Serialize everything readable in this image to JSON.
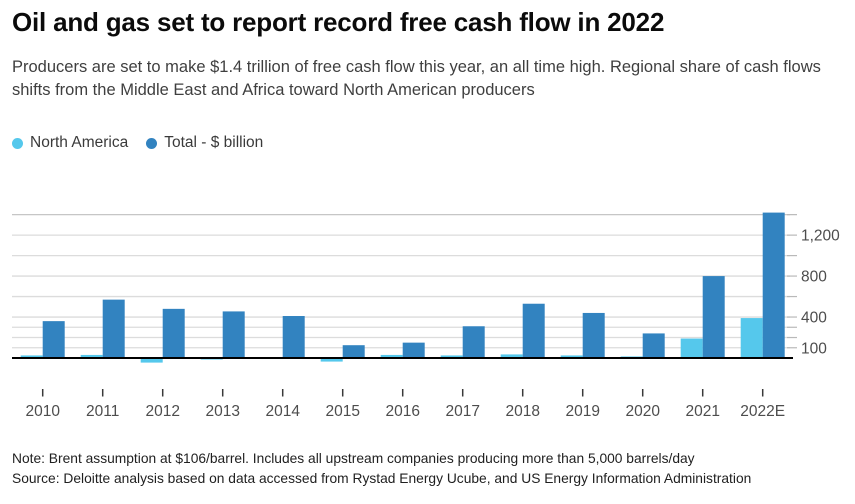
{
  "chart_data": {
    "type": "bar",
    "title": "Oil and gas set to report record free cash flow in 2022",
    "subtitle": "Producers are set to make $1.4 trillion of free cash flow this year, an all time high. Regional share of cash flows shifts from the Middle East and Africa toward North American producers",
    "categories": [
      "2010",
      "2011",
      "2012",
      "2013",
      "2014",
      "2015",
      "2016",
      "2017",
      "2018",
      "2019",
      "2020",
      "2021",
      "2022E"
    ],
    "series": [
      {
        "name": "North America",
        "color": "#55C8EC",
        "values": [
          25,
          30,
          -45,
          -15,
          -10,
          -35,
          30,
          25,
          35,
          25,
          15,
          190,
          390
        ]
      },
      {
        "name": "Total - $ billion",
        "color": "#3283C0",
        "values": [
          360,
          570,
          480,
          455,
          410,
          125,
          150,
          310,
          530,
          440,
          240,
          800,
          1420
        ]
      }
    ],
    "xlabel": "",
    "ylabel": "$ billion",
    "ylim": [
      -60,
      1450
    ],
    "grid": true,
    "legend_position": "top-left",
    "y_axis": {
      "side": "right",
      "gridline_values": [
        100,
        200,
        300,
        400,
        600,
        800,
        1000,
        1200,
        1400
      ],
      "tick_labels": [
        {
          "value": 100,
          "label": "100"
        },
        {
          "value": 400,
          "label": "400"
        },
        {
          "value": 800,
          "label": "800"
        },
        {
          "value": 1200,
          "label": "1,200"
        }
      ]
    }
  },
  "footer": {
    "note": "Note: Brent assumption at $106/barrel. Includes all upstream companies producing more than 5,000 barrels/day",
    "source": "Source: Deloitte analysis based on data accessed from Rystad Energy Ucube, and US Energy Information Administration"
  },
  "colors": {
    "north_america": "#55C8EC",
    "total": "#3283C0",
    "gridline": "#DCDCDC",
    "gridline_top": "#C6C6C6",
    "axis_line": "#000000",
    "tick": "#B9B9B9",
    "x_tick": "#3a3a3a",
    "axis_text": "#4d4d4d",
    "title_text": "#0b0b0b",
    "subtitle_text": "#3f3f3f"
  }
}
